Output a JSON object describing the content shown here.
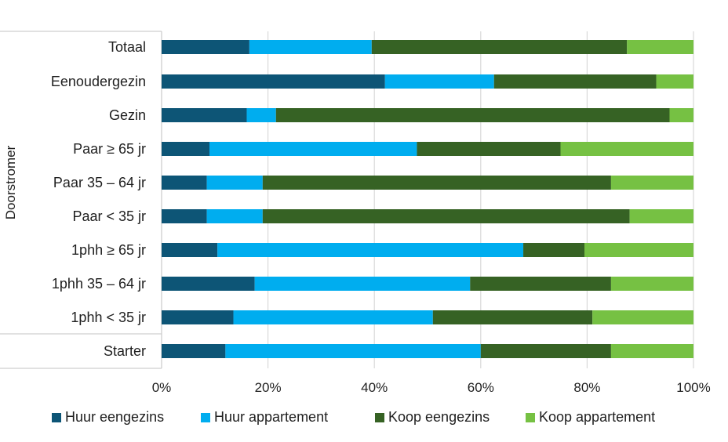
{
  "chart_data": {
    "type": "bar",
    "orientation": "horizontal",
    "stacked": true,
    "percent_stacked": true,
    "categories": [
      "Totaal",
      "Eenoudergezin",
      "Gezin",
      "Paar ≥ 65 jr",
      "Paar 35 – 64 jr",
      "Paar < 35 jr",
      "1phh ≥ 65 jr",
      "1phh 35 – 64 jr",
      "1phh < 35 jr",
      "Starter"
    ],
    "group_label": "Doorstromer",
    "series": [
      {
        "name": "Huur eengezins",
        "color": "#0d5576",
        "values": [
          16.5,
          42.0,
          16.0,
          9.0,
          8.5,
          8.5,
          10.5,
          17.5,
          13.5,
          12.0
        ]
      },
      {
        "name": "Huur appartement",
        "color": "#00adef",
        "values": [
          23.0,
          20.5,
          5.5,
          39.0,
          10.5,
          10.5,
          57.5,
          40.5,
          37.5,
          48.0
        ]
      },
      {
        "name": "Koop eengezins",
        "color": "#366224",
        "values": [
          48.0,
          30.5,
          74.0,
          27.0,
          65.5,
          69.0,
          11.5,
          26.5,
          30.0,
          24.5
        ]
      },
      {
        "name": "Koop appartement",
        "color": "#76c143",
        "values": [
          12.5,
          7.0,
          4.5,
          25.0,
          15.5,
          12.0,
          20.5,
          15.5,
          19.0,
          15.5
        ]
      }
    ],
    "xlim": [
      0,
      100
    ],
    "xticks": [
      "0%",
      "20%",
      "40%",
      "60%",
      "80%",
      "100%"
    ],
    "grid": "vertical",
    "legend_position": "bottom",
    "title": "",
    "xlabel": "",
    "ylabel": ""
  }
}
